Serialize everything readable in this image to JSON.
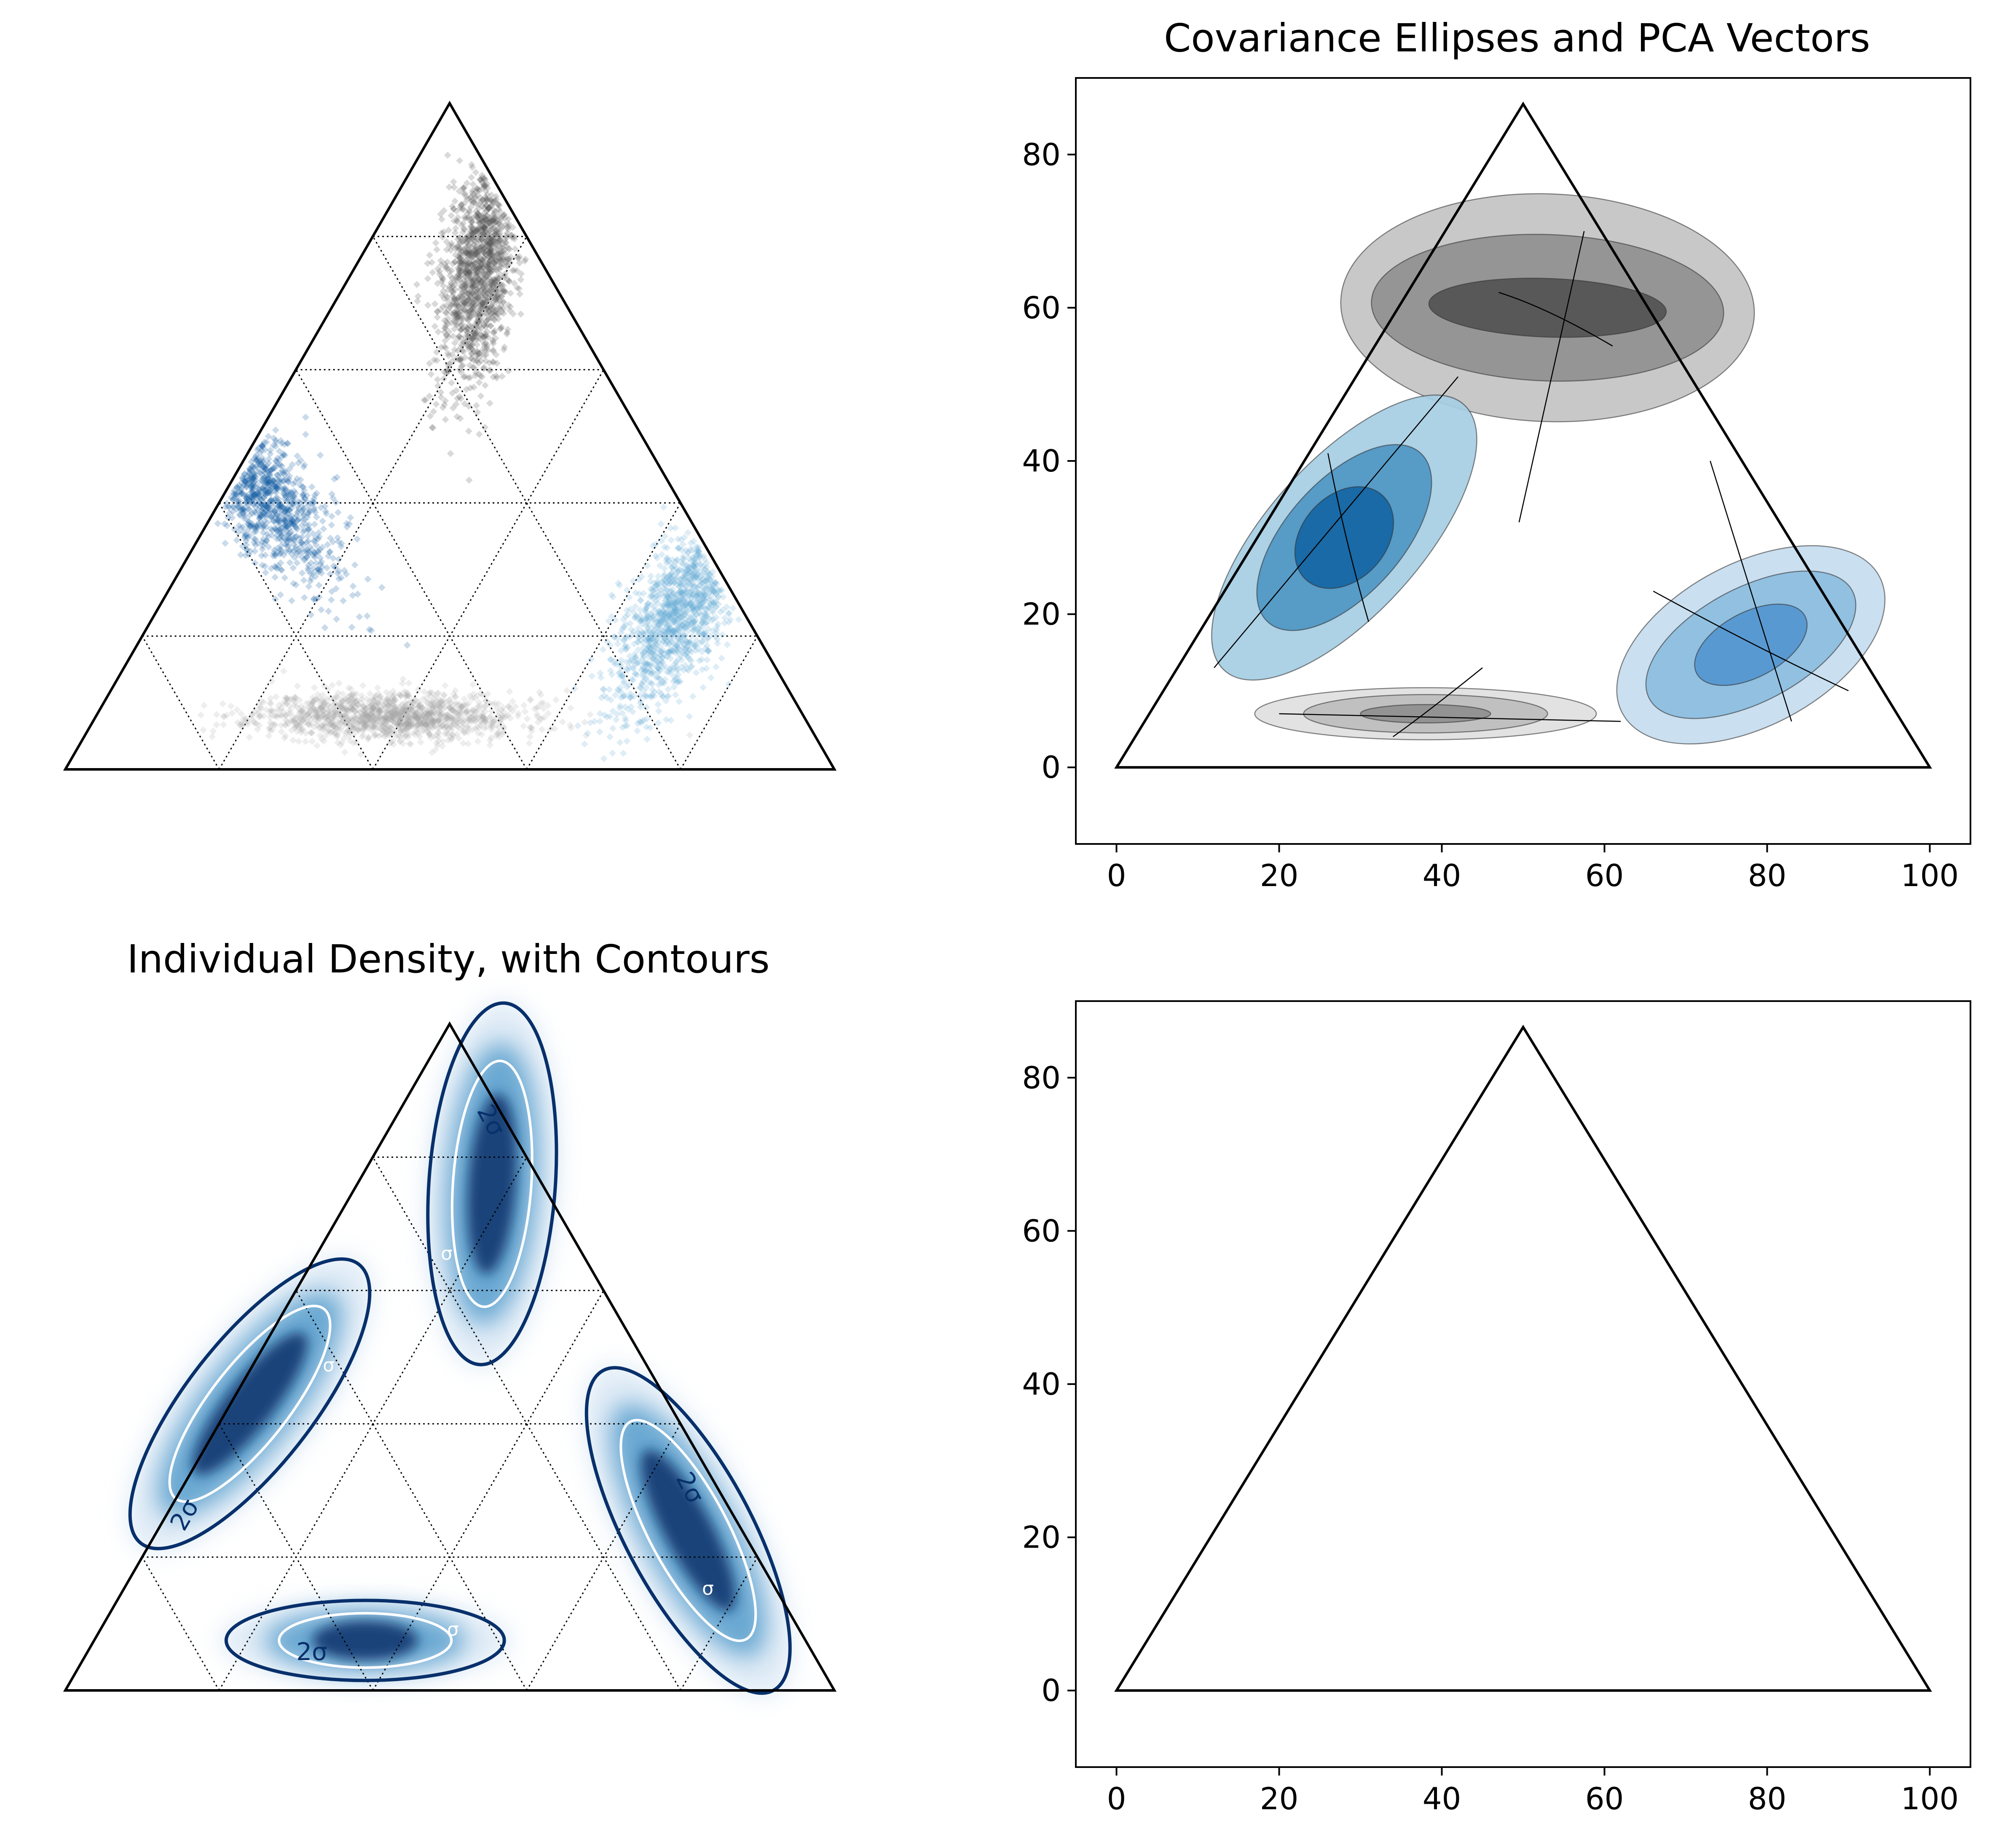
{
  "colors": {
    "blue_dark": "#08589e",
    "blue_mid": "#2b8cbe",
    "blue_light": "#6baed6",
    "gray_dark": "#525252",
    "gray_light": "#a0a0a0",
    "contour_navy": "#08306b",
    "frame": "#000000"
  },
  "chart_data": [
    {
      "type": "scatter",
      "panel": "top-left",
      "title": "",
      "ternary": true,
      "grid": "dotted",
      "axes_visible": false,
      "series": [
        {
          "color": "gray_dark",
          "center": [
            0.54,
            0.76
          ],
          "spread": "elongated vertical, near top apex"
        },
        {
          "color": "blue_dark",
          "center": [
            0.24,
            0.44
          ],
          "spread": "elongated along left edge"
        },
        {
          "color": "blue_light",
          "center": [
            0.8,
            0.24
          ],
          "spread": "elongated along right edge"
        },
        {
          "color": "gray_light",
          "center": [
            0.42,
            0.08
          ],
          "spread": "horizontal band near base"
        }
      ]
    },
    {
      "type": "area",
      "panel": "top-right",
      "title": "Covariance Ellipses and PCA Vectors",
      "xlim": [
        -5,
        105
      ],
      "ylim": [
        -10,
        90
      ],
      "xticks": [
        "0",
        "20",
        "40",
        "60",
        "80",
        "100"
      ],
      "yticks": [
        "0",
        "20",
        "40",
        "60",
        "80"
      ],
      "triangle": [
        [
          0,
          0
        ],
        [
          100,
          0
        ],
        [
          50,
          86.6
        ]
      ],
      "groups": [
        {
          "color": "gray_dark",
          "center": [
            53,
            60
          ],
          "levels": 3
        },
        {
          "color": "blue_dark",
          "center": [
            28,
            30
          ],
          "levels": 3
        },
        {
          "color": "blue_light",
          "center": [
            78,
            16
          ],
          "levels": 3
        },
        {
          "color": "gray_light",
          "center": [
            38,
            7
          ],
          "levels": 3
        }
      ]
    },
    {
      "type": "heatmap",
      "panel": "bottom-left",
      "title": "Individual Density, with Contours",
      "ternary": true,
      "grid": "dotted",
      "axes_visible": false,
      "contour_labels": [
        "2σ",
        "2σ",
        "2σ",
        "2σ"
      ],
      "inner_labels": [
        "σ",
        "σ",
        "σ",
        "σ"
      ]
    },
    {
      "type": "line",
      "panel": "bottom-right",
      "title": "",
      "xlim": [
        -5,
        105
      ],
      "ylim": [
        -10,
        90
      ],
      "xticks": [
        "0",
        "20",
        "40",
        "60",
        "80",
        "100"
      ],
      "yticks": [
        "0",
        "20",
        "40",
        "60",
        "80"
      ],
      "triangle": [
        [
          0,
          0
        ],
        [
          100,
          0
        ],
        [
          50,
          86.6
        ]
      ]
    }
  ]
}
